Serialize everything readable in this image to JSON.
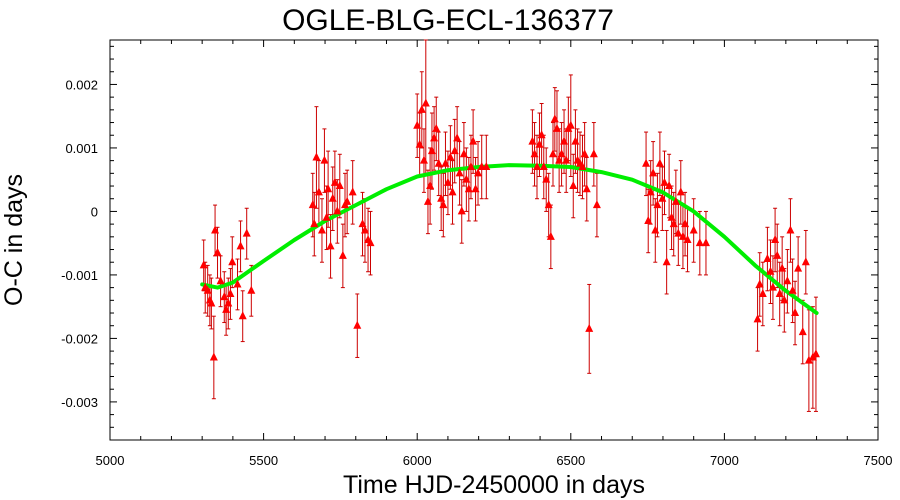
{
  "chart_data": {
    "type": "scatter",
    "title": "OGLE-BLG-ECL-136377",
    "xlabel": "Time HJD-2450000 in days",
    "ylabel": "O-C in days",
    "xlim": [
      5000,
      7500
    ],
    "ylim": [
      -0.0036,
      0.0027
    ],
    "xticks": [
      5000,
      5500,
      6000,
      6500,
      7000,
      7500
    ],
    "xtick_labels": [
      "5000",
      "5500",
      "6000",
      "6500",
      "7000",
      "7500"
    ],
    "yticks": [
      0.002,
      0.001,
      0,
      -0.001,
      -0.002,
      -0.003
    ],
    "ytick_labels": [
      "0.002",
      "0.001",
      "0",
      "-0.001",
      "-0.002",
      "-0.003"
    ],
    "grid": false,
    "colors": {
      "points": "#ff0000",
      "errorbars": "#cc0000",
      "fit": "#00ee00"
    },
    "series": [
      {
        "kind": "points-with-errorbars",
        "points": [
          {
            "x": 5305,
            "y": -0.00085,
            "err": 0.0004
          },
          {
            "x": 5310,
            "y": -0.0012,
            "err": 0.0004
          },
          {
            "x": 5318,
            "y": -0.00125,
            "err": 0.0004
          },
          {
            "x": 5325,
            "y": -0.0014,
            "err": 0.0004
          },
          {
            "x": 5330,
            "y": -0.00145,
            "err": 0.0004
          },
          {
            "x": 5338,
            "y": -0.0023,
            "err": 0.00065
          },
          {
            "x": 5342,
            "y": -0.0003,
            "err": 0.0004
          },
          {
            "x": 5350,
            "y": -0.00065,
            "err": 0.0004
          },
          {
            "x": 5360,
            "y": -0.0011,
            "err": 0.0004
          },
          {
            "x": 5372,
            "y": -0.00135,
            "err": 0.0004
          },
          {
            "x": 5378,
            "y": -0.00155,
            "err": 0.0004
          },
          {
            "x": 5385,
            "y": -0.00145,
            "err": 0.0004
          },
          {
            "x": 5392,
            "y": -0.0013,
            "err": 0.0004
          },
          {
            "x": 5398,
            "y": -0.0008,
            "err": 0.0004
          },
          {
            "x": 5415,
            "y": -0.00115,
            "err": 0.0004
          },
          {
            "x": 5425,
            "y": -0.00055,
            "err": 0.0004
          },
          {
            "x": 5432,
            "y": -0.00165,
            "err": 0.0004
          },
          {
            "x": 5445,
            "y": -0.00035,
            "err": 0.0004
          },
          {
            "x": 5460,
            "y": -0.00125,
            "err": 0.0004
          },
          {
            "x": 5660,
            "y": 0.0001,
            "err": 0.0005
          },
          {
            "x": 5665,
            "y": -0.0002,
            "err": 0.0005
          },
          {
            "x": 5672,
            "y": 0.00085,
            "err": 0.0008
          },
          {
            "x": 5680,
            "y": 0.0003,
            "err": 0.0005
          },
          {
            "x": 5690,
            "y": -0.0003,
            "err": 0.0005
          },
          {
            "x": 5698,
            "y": 0.0008,
            "err": 0.0005
          },
          {
            "x": 5705,
            "y": -0.0001,
            "err": 0.0005
          },
          {
            "x": 5710,
            "y": 0.00035,
            "err": 0.0006
          },
          {
            "x": 5718,
            "y": -0.00055,
            "err": 0.0005
          },
          {
            "x": 5725,
            "y": 0.0002,
            "err": 0.0005
          },
          {
            "x": 5732,
            "y": 0.00045,
            "err": 0.0005
          },
          {
            "x": 5740,
            "y": 0.0,
            "err": 0.0005
          },
          {
            "x": 5748,
            "y": 0.0004,
            "err": 0.0005
          },
          {
            "x": 5758,
            "y": -0.0007,
            "err": 0.0005
          },
          {
            "x": 5765,
            "y": 0.0001,
            "err": 0.0005
          },
          {
            "x": 5772,
            "y": 0.00015,
            "err": 0.0005
          },
          {
            "x": 5790,
            "y": 0.0003,
            "err": 0.0005
          },
          {
            "x": 5805,
            "y": -0.0018,
            "err": 0.0005
          },
          {
            "x": 5822,
            "y": -0.0002,
            "err": 0.0005
          },
          {
            "x": 5830,
            "y": -0.0003,
            "err": 0.0005
          },
          {
            "x": 5840,
            "y": -0.00045,
            "err": 0.0005
          },
          {
            "x": 5848,
            "y": -0.0005,
            "err": 0.0005
          },
          {
            "x": 6000,
            "y": 0.00135,
            "err": 0.0005
          },
          {
            "x": 6008,
            "y": 0.00105,
            "err": 0.0005
          },
          {
            "x": 6015,
            "y": 0.0016,
            "err": 0.0006
          },
          {
            "x": 6022,
            "y": 0.0008,
            "err": 0.0005
          },
          {
            "x": 6028,
            "y": 0.0017,
            "err": 0.0011
          },
          {
            "x": 6035,
            "y": 0.00015,
            "err": 0.0005
          },
          {
            "x": 6042,
            "y": 0.0004,
            "err": 0.0006
          },
          {
            "x": 6048,
            "y": 0.00095,
            "err": 0.0006
          },
          {
            "x": 6055,
            "y": 0.00115,
            "err": 0.0005
          },
          {
            "x": 6062,
            "y": 0.0013,
            "err": 0.0005
          },
          {
            "x": 6070,
            "y": 0.00075,
            "err": 0.0005
          },
          {
            "x": 6078,
            "y": 0.0002,
            "err": 0.0005
          },
          {
            "x": 6085,
            "y": 0.0001,
            "err": 0.0005
          },
          {
            "x": 6092,
            "y": 0.00075,
            "err": 0.0005
          },
          {
            "x": 6100,
            "y": 0.00045,
            "err": 0.0005
          },
          {
            "x": 6108,
            "y": 0.00085,
            "err": 0.0005
          },
          {
            "x": 6115,
            "y": 0.0003,
            "err": 0.0005
          },
          {
            "x": 6122,
            "y": 0.00095,
            "err": 0.0005
          },
          {
            "x": 6130,
            "y": 0.00115,
            "err": 0.0005
          },
          {
            "x": 6138,
            "y": 0.0006,
            "err": 0.0005
          },
          {
            "x": 6145,
            "y": 0.0,
            "err": 0.0005
          },
          {
            "x": 6152,
            "y": 0.0009,
            "err": 0.0005
          },
          {
            "x": 6160,
            "y": 0.0005,
            "err": 0.0005
          },
          {
            "x": 6168,
            "y": 0.00035,
            "err": 0.0005
          },
          {
            "x": 6175,
            "y": 0.0007,
            "err": 0.0005
          },
          {
            "x": 6182,
            "y": 0.0011,
            "err": 0.0005
          },
          {
            "x": 6190,
            "y": 0.00035,
            "err": 0.0005
          },
          {
            "x": 6198,
            "y": 0.0006,
            "err": 0.0005
          },
          {
            "x": 6210,
            "y": 0.0007,
            "err": 0.0005
          },
          {
            "x": 6225,
            "y": 0.0007,
            "err": 0.0005
          },
          {
            "x": 6375,
            "y": 0.0011,
            "err": 0.0005
          },
          {
            "x": 6382,
            "y": 0.0009,
            "err": 0.0005
          },
          {
            "x": 6390,
            "y": 0.0007,
            "err": 0.0005
          },
          {
            "x": 6398,
            "y": 0.00105,
            "err": 0.0005
          },
          {
            "x": 6405,
            "y": 0.0012,
            "err": 0.0005
          },
          {
            "x": 6412,
            "y": 0.0007,
            "err": 0.0005
          },
          {
            "x": 6420,
            "y": 0.0005,
            "err": 0.0005
          },
          {
            "x": 6428,
            "y": 0.0001,
            "err": 0.0005
          },
          {
            "x": 6435,
            "y": -0.0004,
            "err": 0.0005
          },
          {
            "x": 6442,
            "y": 0.0009,
            "err": 0.0005
          },
          {
            "x": 6448,
            "y": 0.00145,
            "err": 0.0005
          },
          {
            "x": 6455,
            "y": 0.0013,
            "err": 0.0006
          },
          {
            "x": 6462,
            "y": 0.0008,
            "err": 0.0005
          },
          {
            "x": 6470,
            "y": 0.0009,
            "err": 0.0005
          },
          {
            "x": 6478,
            "y": 0.0011,
            "err": 0.0005
          },
          {
            "x": 6485,
            "y": 0.0008,
            "err": 0.0005
          },
          {
            "x": 6492,
            "y": 0.0013,
            "err": 0.0005
          },
          {
            "x": 6500,
            "y": 0.00135,
            "err": 0.0008
          },
          {
            "x": 6508,
            "y": 0.0004,
            "err": 0.0005
          },
          {
            "x": 6515,
            "y": 0.0011,
            "err": 0.0005
          },
          {
            "x": 6522,
            "y": 0.0008,
            "err": 0.0005
          },
          {
            "x": 6530,
            "y": 0.00075,
            "err": 0.0005
          },
          {
            "x": 6538,
            "y": 0.0007,
            "err": 0.0005
          },
          {
            "x": 6545,
            "y": 0.0009,
            "err": 0.0005
          },
          {
            "x": 6552,
            "y": 0.00035,
            "err": 0.0005
          },
          {
            "x": 6560,
            "y": -0.00185,
            "err": 0.0007
          },
          {
            "x": 6575,
            "y": 0.0009,
            "err": 0.0005
          },
          {
            "x": 6585,
            "y": 0.0001,
            "err": 0.0005
          },
          {
            "x": 6745,
            "y": 0.00075,
            "err": 0.0005
          },
          {
            "x": 6752,
            "y": -0.00015,
            "err": 0.0005
          },
          {
            "x": 6760,
            "y": 0.0003,
            "err": 0.0005
          },
          {
            "x": 6768,
            "y": 0.0006,
            "err": 0.0005
          },
          {
            "x": 6775,
            "y": -0.0003,
            "err": 0.0005
          },
          {
            "x": 6782,
            "y": 0.0001,
            "err": 0.0005
          },
          {
            "x": 6790,
            "y": 0.00075,
            "err": 0.0005
          },
          {
            "x": 6798,
            "y": 0.0002,
            "err": 0.0005
          },
          {
            "x": 6805,
            "y": 0.00045,
            "err": 0.0005
          },
          {
            "x": 6812,
            "y": -0.0008,
            "err": 0.0005
          },
          {
            "x": 6820,
            "y": 0.0004,
            "err": 0.0005
          },
          {
            "x": 6828,
            "y": -0.0001,
            "err": 0.0005
          },
          {
            "x": 6835,
            "y": -0.0002,
            "err": 0.0005
          },
          {
            "x": 6842,
            "y": 0.00015,
            "err": 0.0005
          },
          {
            "x": 6850,
            "y": -0.00035,
            "err": 0.0005
          },
          {
            "x": 6858,
            "y": 0.0003,
            "err": 0.0005
          },
          {
            "x": 6865,
            "y": -0.0004,
            "err": 0.0005
          },
          {
            "x": 6872,
            "y": -0.0002,
            "err": 0.0005
          },
          {
            "x": 6880,
            "y": -0.00045,
            "err": 0.0005
          },
          {
            "x": 6900,
            "y": -0.0003,
            "err": 0.0005
          },
          {
            "x": 6920,
            "y": -0.0005,
            "err": 0.0005
          },
          {
            "x": 6940,
            "y": -0.0005,
            "err": 0.0005
          },
          {
            "x": 7108,
            "y": -0.0017,
            "err": 0.0005
          },
          {
            "x": 7115,
            "y": -0.00115,
            "err": 0.0005
          },
          {
            "x": 7125,
            "y": -0.0013,
            "err": 0.0005
          },
          {
            "x": 7140,
            "y": -0.00075,
            "err": 0.0005
          },
          {
            "x": 7150,
            "y": -0.00095,
            "err": 0.0005
          },
          {
            "x": 7158,
            "y": -0.0012,
            "err": 0.0005
          },
          {
            "x": 7165,
            "y": -0.00045,
            "err": 0.0005
          },
          {
            "x": 7172,
            "y": -0.0007,
            "err": 0.0005
          },
          {
            "x": 7180,
            "y": -0.0013,
            "err": 0.0005
          },
          {
            "x": 7188,
            "y": -0.0009,
            "err": 0.0005
          },
          {
            "x": 7195,
            "y": -0.0014,
            "err": 0.0005
          },
          {
            "x": 7205,
            "y": -0.0011,
            "err": 0.0005
          },
          {
            "x": 7215,
            "y": -0.0003,
            "err": 0.0005
          },
          {
            "x": 7222,
            "y": -0.00125,
            "err": 0.0005
          },
          {
            "x": 7230,
            "y": -0.0016,
            "err": 0.0005
          },
          {
            "x": 7240,
            "y": -0.0009,
            "err": 0.0005
          },
          {
            "x": 7255,
            "y": -0.0019,
            "err": 0.0005
          },
          {
            "x": 7265,
            "y": -0.0008,
            "err": 0.0005
          },
          {
            "x": 7275,
            "y": -0.00235,
            "err": 0.0008
          },
          {
            "x": 7288,
            "y": -0.0023,
            "err": 0.0008
          },
          {
            "x": 7298,
            "y": -0.00225,
            "err": 0.0009
          }
        ]
      },
      {
        "kind": "fit-curve",
        "x": [
          5300,
          5350,
          5400,
          5450,
          5500,
          5600,
          5700,
          5800,
          5900,
          6000,
          6100,
          6200,
          6300,
          6400,
          6500,
          6600,
          6700,
          6800,
          6900,
          7000,
          7100,
          7200,
          7300
        ],
        "y": [
          -0.00115,
          -0.0012,
          -0.00112,
          -0.00095,
          -0.00078,
          -0.00045,
          -0.00015,
          0.0001,
          0.00035,
          0.00055,
          0.00065,
          0.0007,
          0.00073,
          0.00072,
          0.0007,
          0.00062,
          0.0005,
          0.0003,
          0.0,
          -0.0004,
          -0.00085,
          -0.00125,
          -0.0016
        ]
      }
    ]
  }
}
